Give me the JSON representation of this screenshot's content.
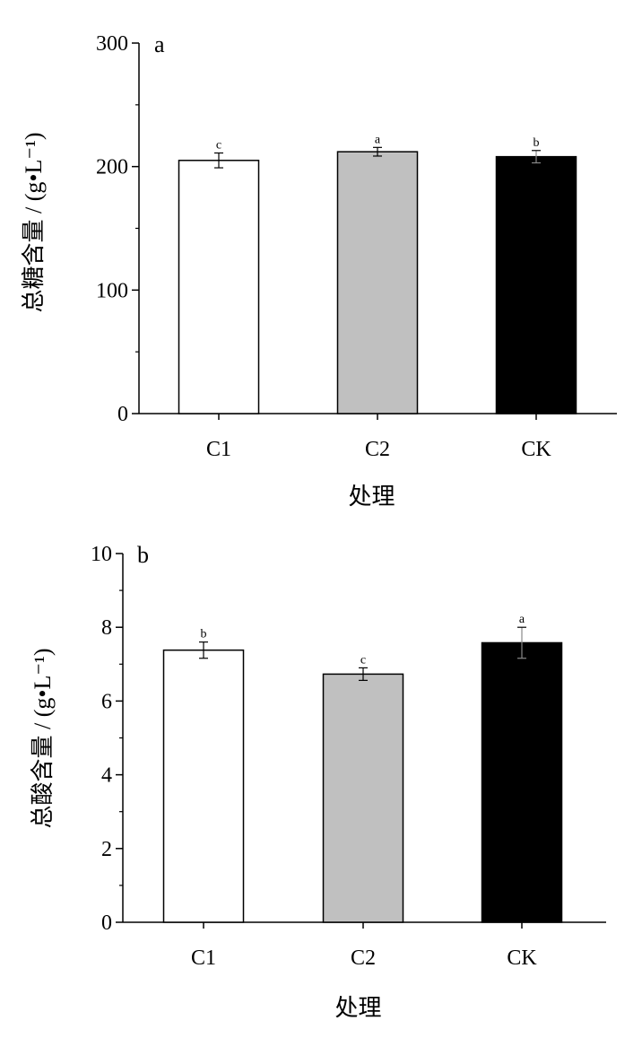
{
  "chart_data": [
    {
      "type": "bar",
      "panel_label": "a",
      "categories": [
        "C1",
        "C2",
        "CK"
      ],
      "values": [
        205,
        212,
        208
      ],
      "errors": [
        6,
        3.5,
        5
      ],
      "significance": [
        "c",
        "a",
        "b"
      ],
      "colors": [
        "#ffffff",
        "#c0c0c0",
        "#000000"
      ],
      "xlabel": "处理",
      "ylabel": "总糖含量 / (g•L⁻¹)",
      "ylim": [
        0,
        300
      ],
      "yticks": [
        0,
        100,
        200,
        300
      ],
      "y_tick_labels": [
        "0",
        "100",
        "200",
        "300"
      ],
      "grid": false
    },
    {
      "type": "bar",
      "panel_label": "b",
      "categories": [
        "C1",
        "C2",
        "CK"
      ],
      "values": [
        7.38,
        6.73,
        7.58
      ],
      "errors": [
        0.22,
        0.17,
        0.42
      ],
      "significance": [
        "b",
        "c",
        "a"
      ],
      "colors": [
        "#ffffff",
        "#c0c0c0",
        "#000000"
      ],
      "xlabel": "处理",
      "ylabel": "总酸含量 / (g•L⁻¹)",
      "ylim": [
        0,
        10
      ],
      "yticks": [
        0,
        2,
        4,
        6,
        8,
        10
      ],
      "y_tick_labels": [
        "0",
        "2",
        "4",
        "6",
        "8",
        "10"
      ],
      "grid": false
    }
  ]
}
